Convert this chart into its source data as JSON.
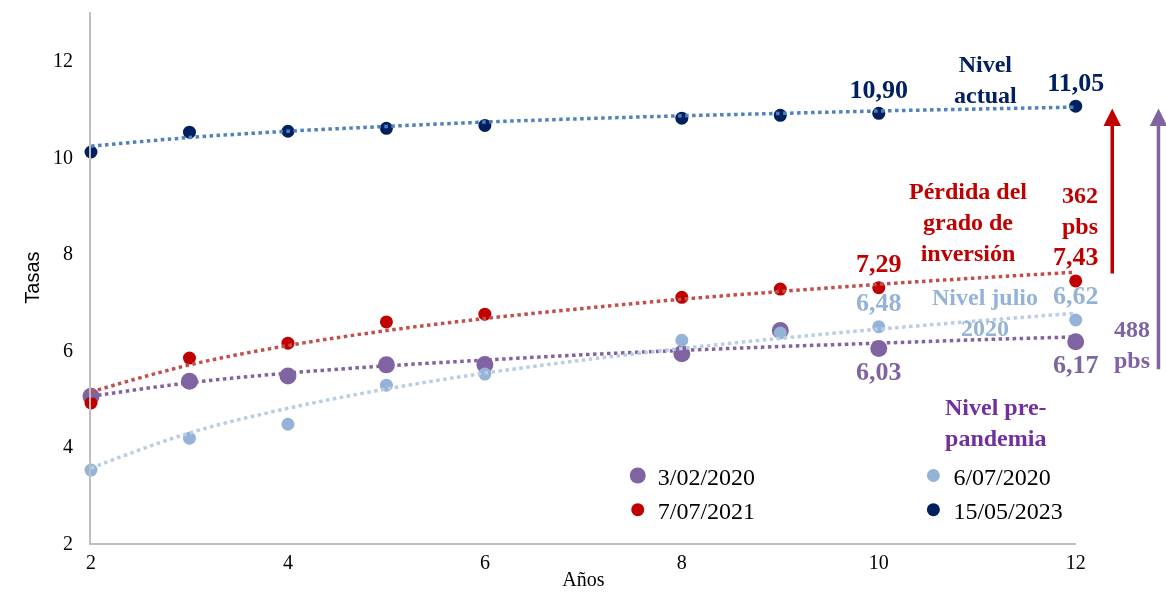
{
  "chart_data": {
    "type": "scatter",
    "xlabel": "Años",
    "ylabel": "Tasas",
    "x": [
      2,
      3,
      4,
      5,
      6,
      8,
      9,
      10,
      12
    ],
    "xlim": [
      2,
      12
    ],
    "xticks": [
      2,
      4,
      6,
      8,
      10,
      12
    ],
    "ylim": [
      2,
      13
    ],
    "yticks": [
      2,
      4,
      6,
      8,
      10,
      12
    ],
    "grid": false,
    "legend": "bottom right",
    "marker": "circle",
    "series": [
      {
        "name": "3/02/2020",
        "color": "#8064a2",
        "values": [
          5.04,
          5.35,
          5.46,
          5.69,
          5.7,
          5.92,
          6.4,
          6.03,
          6.17
        ],
        "value_labels": [
          null,
          null,
          null,
          null,
          null,
          null,
          null,
          "6,03",
          "6,17"
        ]
      },
      {
        "name": "6/07/2020",
        "color": "#95b3d7",
        "values": [
          3.51,
          4.17,
          4.46,
          5.27,
          5.5,
          6.2,
          6.35,
          6.48,
          6.62
        ],
        "value_labels": [
          null,
          null,
          null,
          null,
          null,
          null,
          null,
          "6,48",
          "6,62"
        ]
      },
      {
        "name": "7/07/2021",
        "color": "#c00000",
        "values": [
          4.9,
          5.83,
          6.14,
          6.58,
          6.74,
          7.09,
          7.26,
          7.29,
          7.43
        ],
        "value_labels": [
          null,
          null,
          null,
          null,
          null,
          null,
          null,
          "7,29",
          "7,43"
        ]
      },
      {
        "name": "15/05/2023",
        "color": "#002060",
        "values": [
          10.1,
          10.51,
          10.53,
          10.59,
          10.65,
          10.8,
          10.86,
          10.9,
          11.05
        ],
        "value_labels": [
          null,
          null,
          null,
          null,
          null,
          null,
          null,
          "10,90",
          "11,05"
        ]
      },
      {
        "type": "line",
        "marker": "none",
        "line_style": "dotted",
        "color": "#8064a2",
        "x": [
          2,
          3,
          4,
          5,
          6,
          7,
          8,
          9,
          10,
          11,
          12
        ],
        "values": [
          5.04,
          5.32,
          5.52,
          5.67,
          5.79,
          5.9,
          5.99,
          6.07,
          6.14,
          6.21,
          6.27
        ]
      },
      {
        "type": "line",
        "marker": "none",
        "line_style": "dotted",
        "color": "#b9cde5",
        "x": [
          2,
          3,
          4,
          5,
          6,
          7,
          8,
          9,
          10,
          11,
          12
        ],
        "values": [
          3.55,
          4.28,
          4.79,
          5.19,
          5.52,
          5.79,
          6.03,
          6.24,
          6.43,
          6.6,
          6.76
        ]
      },
      {
        "type": "line",
        "marker": "none",
        "line_style": "dotted",
        "color": "#c0504d",
        "x": [
          2,
          3,
          4,
          5,
          6,
          7,
          8,
          9,
          10,
          11,
          12
        ],
        "values": [
          5.13,
          5.69,
          6.09,
          6.4,
          6.65,
          6.86,
          7.05,
          7.21,
          7.36,
          7.49,
          7.61
        ]
      },
      {
        "type": "line",
        "marker": "none",
        "line_style": "dotted",
        "color": "#4f81bd",
        "x": [
          2,
          3,
          4,
          5,
          6,
          7,
          8,
          9,
          10,
          11,
          12
        ],
        "values": [
          10.22,
          10.4,
          10.53,
          10.63,
          10.72,
          10.79,
          10.85,
          10.9,
          10.95,
          10.99,
          11.03
        ]
      }
    ],
    "annotations": [
      "Nivel actual",
      "Pérdida del grado de inversión",
      "362 pbs",
      "Nivel julio 2020",
      "488 pbs",
      "Nivel pre-pandemia"
    ]
  }
}
